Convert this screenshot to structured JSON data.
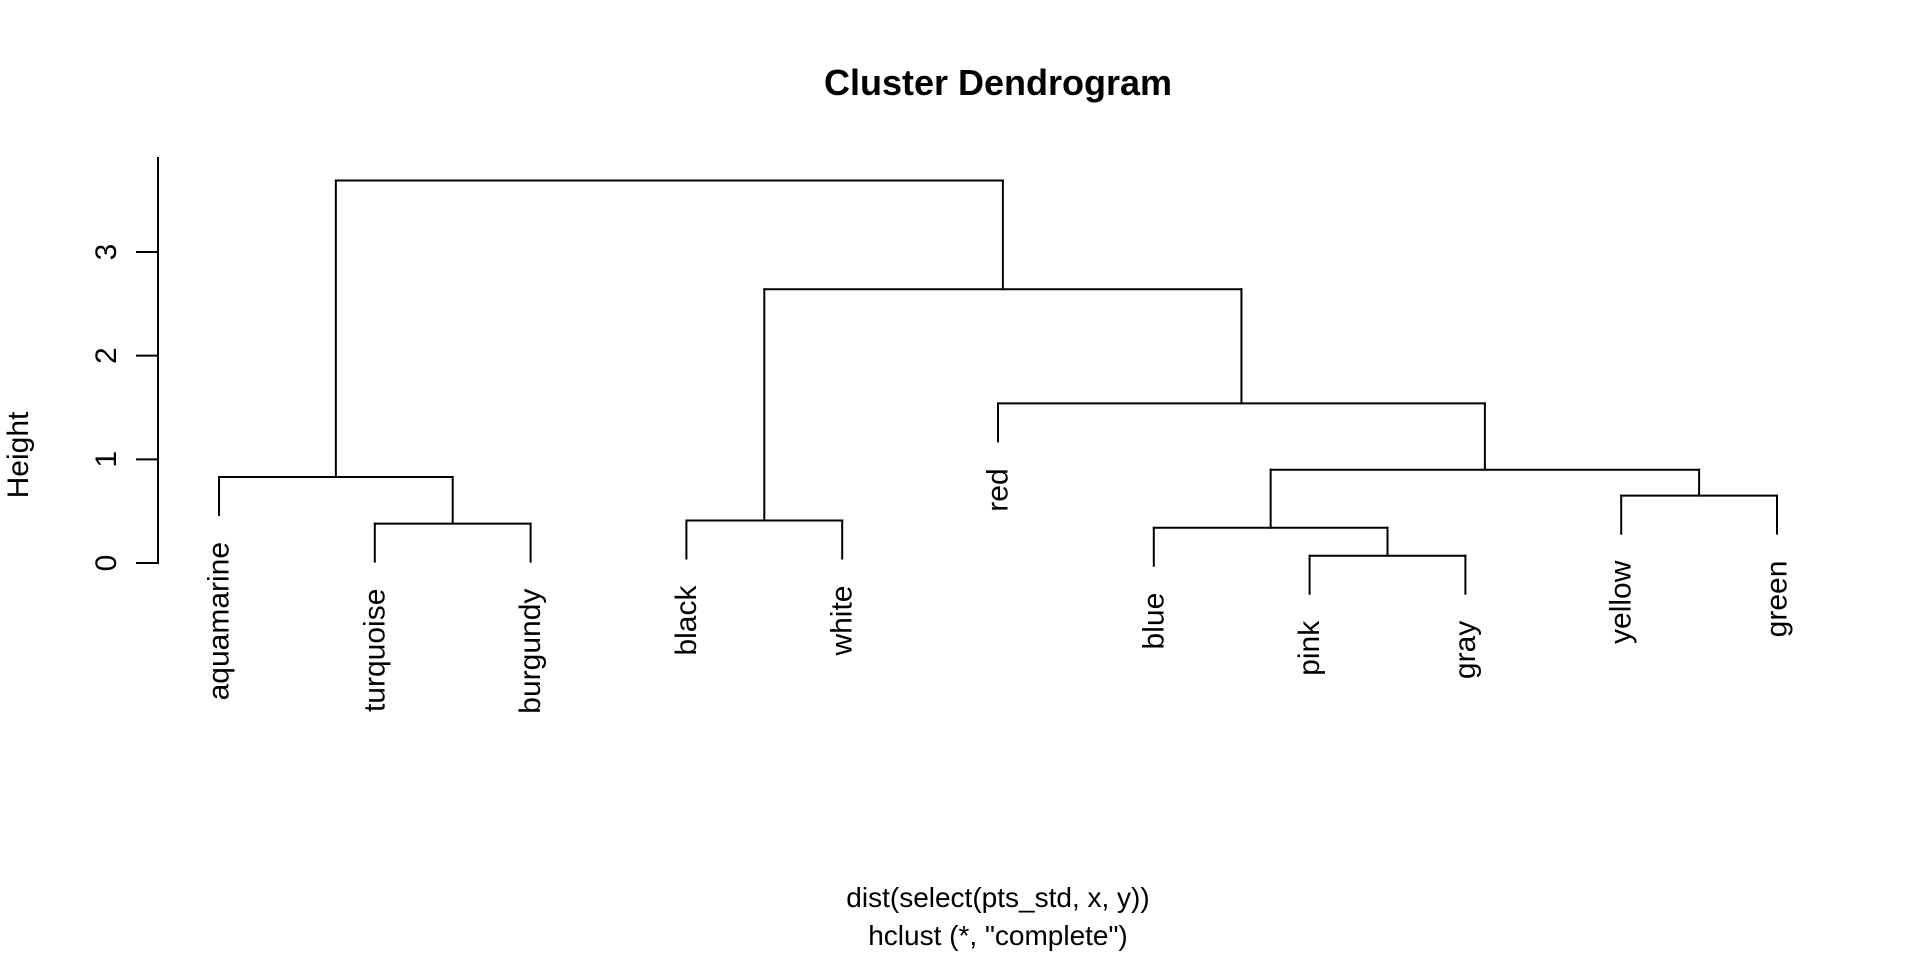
{
  "chart_data": {
    "type": "dendrogram",
    "title": "Cluster Dendrogram",
    "ylabel": "Height",
    "caption_lines": [
      "dist(select(pts_std, x, y))",
      "hclust (*, \"complete\")"
    ],
    "clustering_method": "complete",
    "distance_call": "dist(select(pts_std, x, y))",
    "yticks": [
      0,
      1,
      2,
      3
    ],
    "ylim": [
      -0.3,
      3.9
    ],
    "hang": 0.1,
    "grid": false,
    "leaf_order": [
      "aquamarine",
      "turquoise",
      "burgundy",
      "black",
      "white",
      "red",
      "blue",
      "pink",
      "gray",
      "yellow",
      "green"
    ],
    "tree": {
      "height": 3.69,
      "children": [
        {
          "height": 0.83,
          "children": [
            {
              "leaf": "aquamarine"
            },
            {
              "height": 0.38,
              "children": [
                {
                  "leaf": "turquoise"
                },
                {
                  "leaf": "burgundy"
                }
              ]
            }
          ]
        },
        {
          "height": 2.64,
          "children": [
            {
              "height": 0.41,
              "children": [
                {
                  "leaf": "black"
                },
                {
                  "leaf": "white"
                }
              ]
            },
            {
              "height": 1.54,
              "children": [
                {
                  "leaf": "red"
                },
                {
                  "height": 0.9,
                  "children": [
                    {
                      "height": 0.34,
                      "children": [
                        {
                          "leaf": "blue"
                        },
                        {
                          "height": 0.07,
                          "children": [
                            {
                              "leaf": "pink"
                            },
                            {
                              "leaf": "gray"
                            }
                          ]
                        }
                      ]
                    },
                    {
                      "height": 0.65,
                      "children": [
                        {
                          "leaf": "yellow"
                        },
                        {
                          "leaf": "green"
                        }
                      ]
                    }
                  ]
                }
              ]
            }
          ]
        }
      ]
    },
    "colors": {
      "line": "#000000",
      "text": "#000000",
      "background": "#ffffff"
    }
  }
}
